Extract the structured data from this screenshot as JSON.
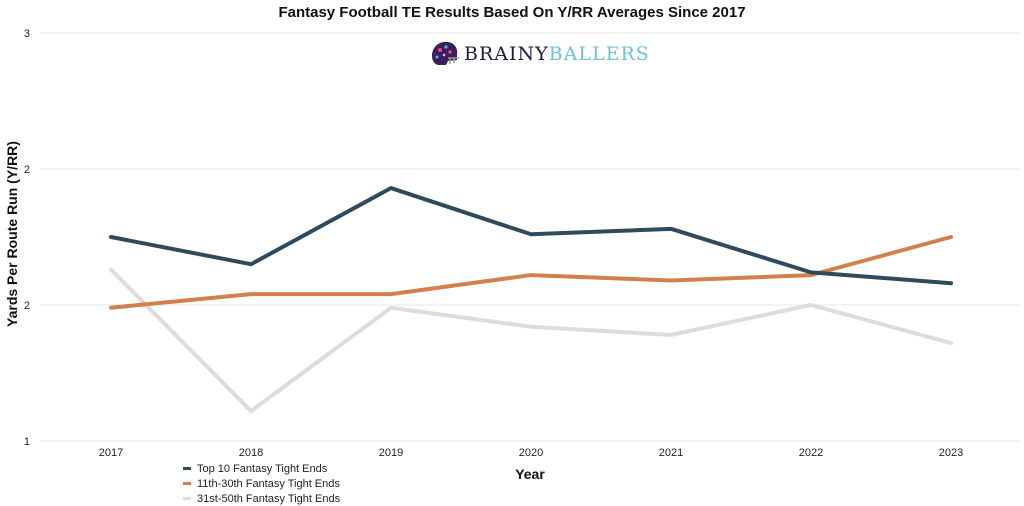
{
  "chart_data": {
    "type": "line",
    "title": "Fantasy Football TE Results Based On Y/RR Averages Since 2017",
    "xlabel": "Year",
    "ylabel": "Yards Per Route Run (Y/RR)",
    "x": [
      "2017",
      "2018",
      "2019",
      "2020",
      "2021",
      "2022",
      "2023"
    ],
    "ytick_positions": [
      1,
      1.5,
      2,
      2.5
    ],
    "ytick_labels": [
      "1",
      "2",
      "2",
      "3"
    ],
    "ylim": [
      1,
      2.5
    ],
    "grid": "horizontal",
    "legend_position": "bottom-left",
    "series": [
      {
        "name": "Top 10 Fantasy Tight Ends",
        "color": "#2e4a5c",
        "values": [
          1.75,
          1.65,
          1.93,
          1.76,
          1.78,
          1.62,
          1.58
        ]
      },
      {
        "name": "11th-30th Fantasy Tight Ends",
        "color": "#d4804e",
        "values": [
          1.49,
          1.54,
          1.54,
          1.61,
          1.59,
          1.61,
          1.75
        ]
      },
      {
        "name": "31st-50th Fantasy Tight Ends",
        "color": "#dcdcdc",
        "values": [
          1.63,
          1.11,
          1.49,
          1.42,
          1.39,
          1.5,
          1.36
        ]
      }
    ]
  },
  "logo": {
    "word_a": "BRAINY",
    "word_b": "BALLERS"
  },
  "colors": {
    "grid": "#e6e6e6",
    "axis_text": "#222222"
  }
}
